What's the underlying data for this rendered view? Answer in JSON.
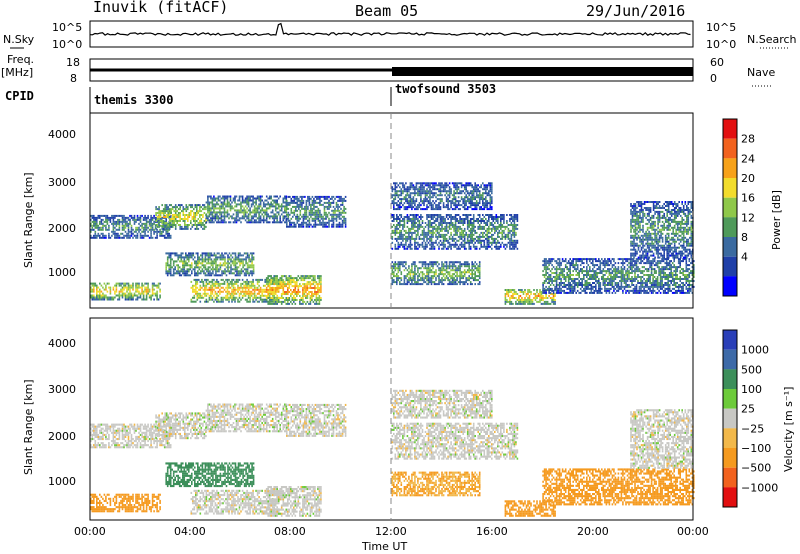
{
  "header": {
    "station": "Inuvik (fitACF)",
    "beam": "Beam 05",
    "date": "29/Jun/2016"
  },
  "top_panels": {
    "noise_left": "N.Sky",
    "noise_right": "N.Search",
    "noise_ticks": [
      "10^5",
      "10^0"
    ],
    "freq_left": "Freq.",
    "freq_unit": "[MHz]",
    "freq_ticks": [
      "18",
      "8"
    ],
    "nave_right": "Nave",
    "nave_ticks": [
      "60",
      "0"
    ],
    "cpid_label": "CPID",
    "programs": [
      "themis 3300",
      "twofsound 3503"
    ]
  },
  "axes": {
    "ylabel": "Slant Range [km]",
    "yticks": [
      "4000",
      "3000",
      "2000",
      "1000"
    ],
    "xticks": [
      "00:00",
      "04:00",
      "08:00",
      "12:00",
      "16:00",
      "20:00",
      "00:00"
    ],
    "xlabel": "Time UT"
  },
  "colorbars": {
    "power_title": "Power [dB]",
    "power_ticks": [
      "28",
      "24",
      "20",
      "16",
      "12",
      "8",
      "4"
    ],
    "velocity_title": "Velocity [m s⁻¹]",
    "velocity_ticks": [
      "1000",
      "500",
      "100",
      "25",
      "−25",
      "−100",
      "−500",
      "−1000"
    ]
  },
  "chart_data": {
    "type": "heatmap",
    "title": "Inuvik (fitACF) Beam 05 29/Jun/2016",
    "xlabel": "Time UT",
    "ylabel": "Slant Range [km]",
    "x_range_hours": [
      0,
      24
    ],
    "y_range_km": [
      180,
      4600
    ],
    "mode_change_hour": 12,
    "cpid": [
      {
        "program": "themis 3300",
        "start_hour": 0,
        "end_hour": 12
      },
      {
        "program": "twofsound 3503",
        "start_hour": 12,
        "end_hour": 24
      }
    ],
    "power_scale": {
      "units": "dB",
      "levels": [
        0,
        4,
        8,
        12,
        16,
        20,
        24,
        28,
        32
      ],
      "colors": [
        "#0000ff",
        "#1f3fa8",
        "#3a6aa0",
        "#4f9a5a",
        "#8fc84a",
        "#f2dc2c",
        "#f7a21a",
        "#f2621e",
        "#e20f10"
      ]
    },
    "velocity_scale": {
      "units": "m/s",
      "levels": [
        -1000,
        -500,
        -100,
        -25,
        25,
        100,
        500,
        1000
      ],
      "colors": [
        "#e20f10",
        "#f2621e",
        "#f59a1f",
        "#f2b84a",
        "#c8c8c4",
        "#6dcb3a",
        "#3c8f5a",
        "#3d6aa8",
        "#2a3fb8"
      ]
    },
    "echo_regions": [
      {
        "t0": 0.0,
        "t1": 3.2,
        "r0": 1750,
        "r1": 2250,
        "power_db": 14,
        "velocity": 0
      },
      {
        "t0": 2.6,
        "t1": 4.6,
        "r0": 1950,
        "r1": 2500,
        "power_db": 22,
        "velocity": 0
      },
      {
        "t0": 4.6,
        "t1": 7.8,
        "r0": 2100,
        "r1": 2700,
        "power_db": 16,
        "velocity": 0
      },
      {
        "t0": 7.8,
        "t1": 10.2,
        "r0": 2000,
        "r1": 2700,
        "power_db": 14,
        "velocity": 0
      },
      {
        "t0": 0.0,
        "t1": 2.8,
        "r0": 350,
        "r1": 750,
        "power_db": 24,
        "velocity": -300
      },
      {
        "t0": 3.0,
        "t1": 6.5,
        "r0": 900,
        "r1": 1400,
        "power_db": 18,
        "velocity": 150
      },
      {
        "t0": 4.0,
        "t1": 7.5,
        "r0": 300,
        "r1": 800,
        "power_db": 26,
        "velocity": 0
      },
      {
        "t0": 7.0,
        "t1": 9.2,
        "r0": 250,
        "r1": 900,
        "power_db": 28,
        "velocity": 0
      },
      {
        "t0": 12.0,
        "t1": 16.0,
        "r0": 2400,
        "r1": 3000,
        "power_db": 12,
        "velocity": 0
      },
      {
        "t0": 12.0,
        "t1": 17.0,
        "r0": 1500,
        "r1": 2300,
        "power_db": 14,
        "velocity": 0
      },
      {
        "t0": 12.0,
        "t1": 15.5,
        "r0": 700,
        "r1": 1200,
        "power_db": 18,
        "velocity": -100
      },
      {
        "t0": 16.5,
        "t1": 18.5,
        "r0": 250,
        "r1": 600,
        "power_db": 26,
        "velocity": -150
      },
      {
        "t0": 18.0,
        "t1": 24.0,
        "r0": 500,
        "r1": 1300,
        "power_db": 14,
        "velocity": -400
      },
      {
        "t0": 21.5,
        "t1": 24.0,
        "r0": 1300,
        "r1": 2600,
        "power_db": 14,
        "velocity": 0
      }
    ]
  }
}
